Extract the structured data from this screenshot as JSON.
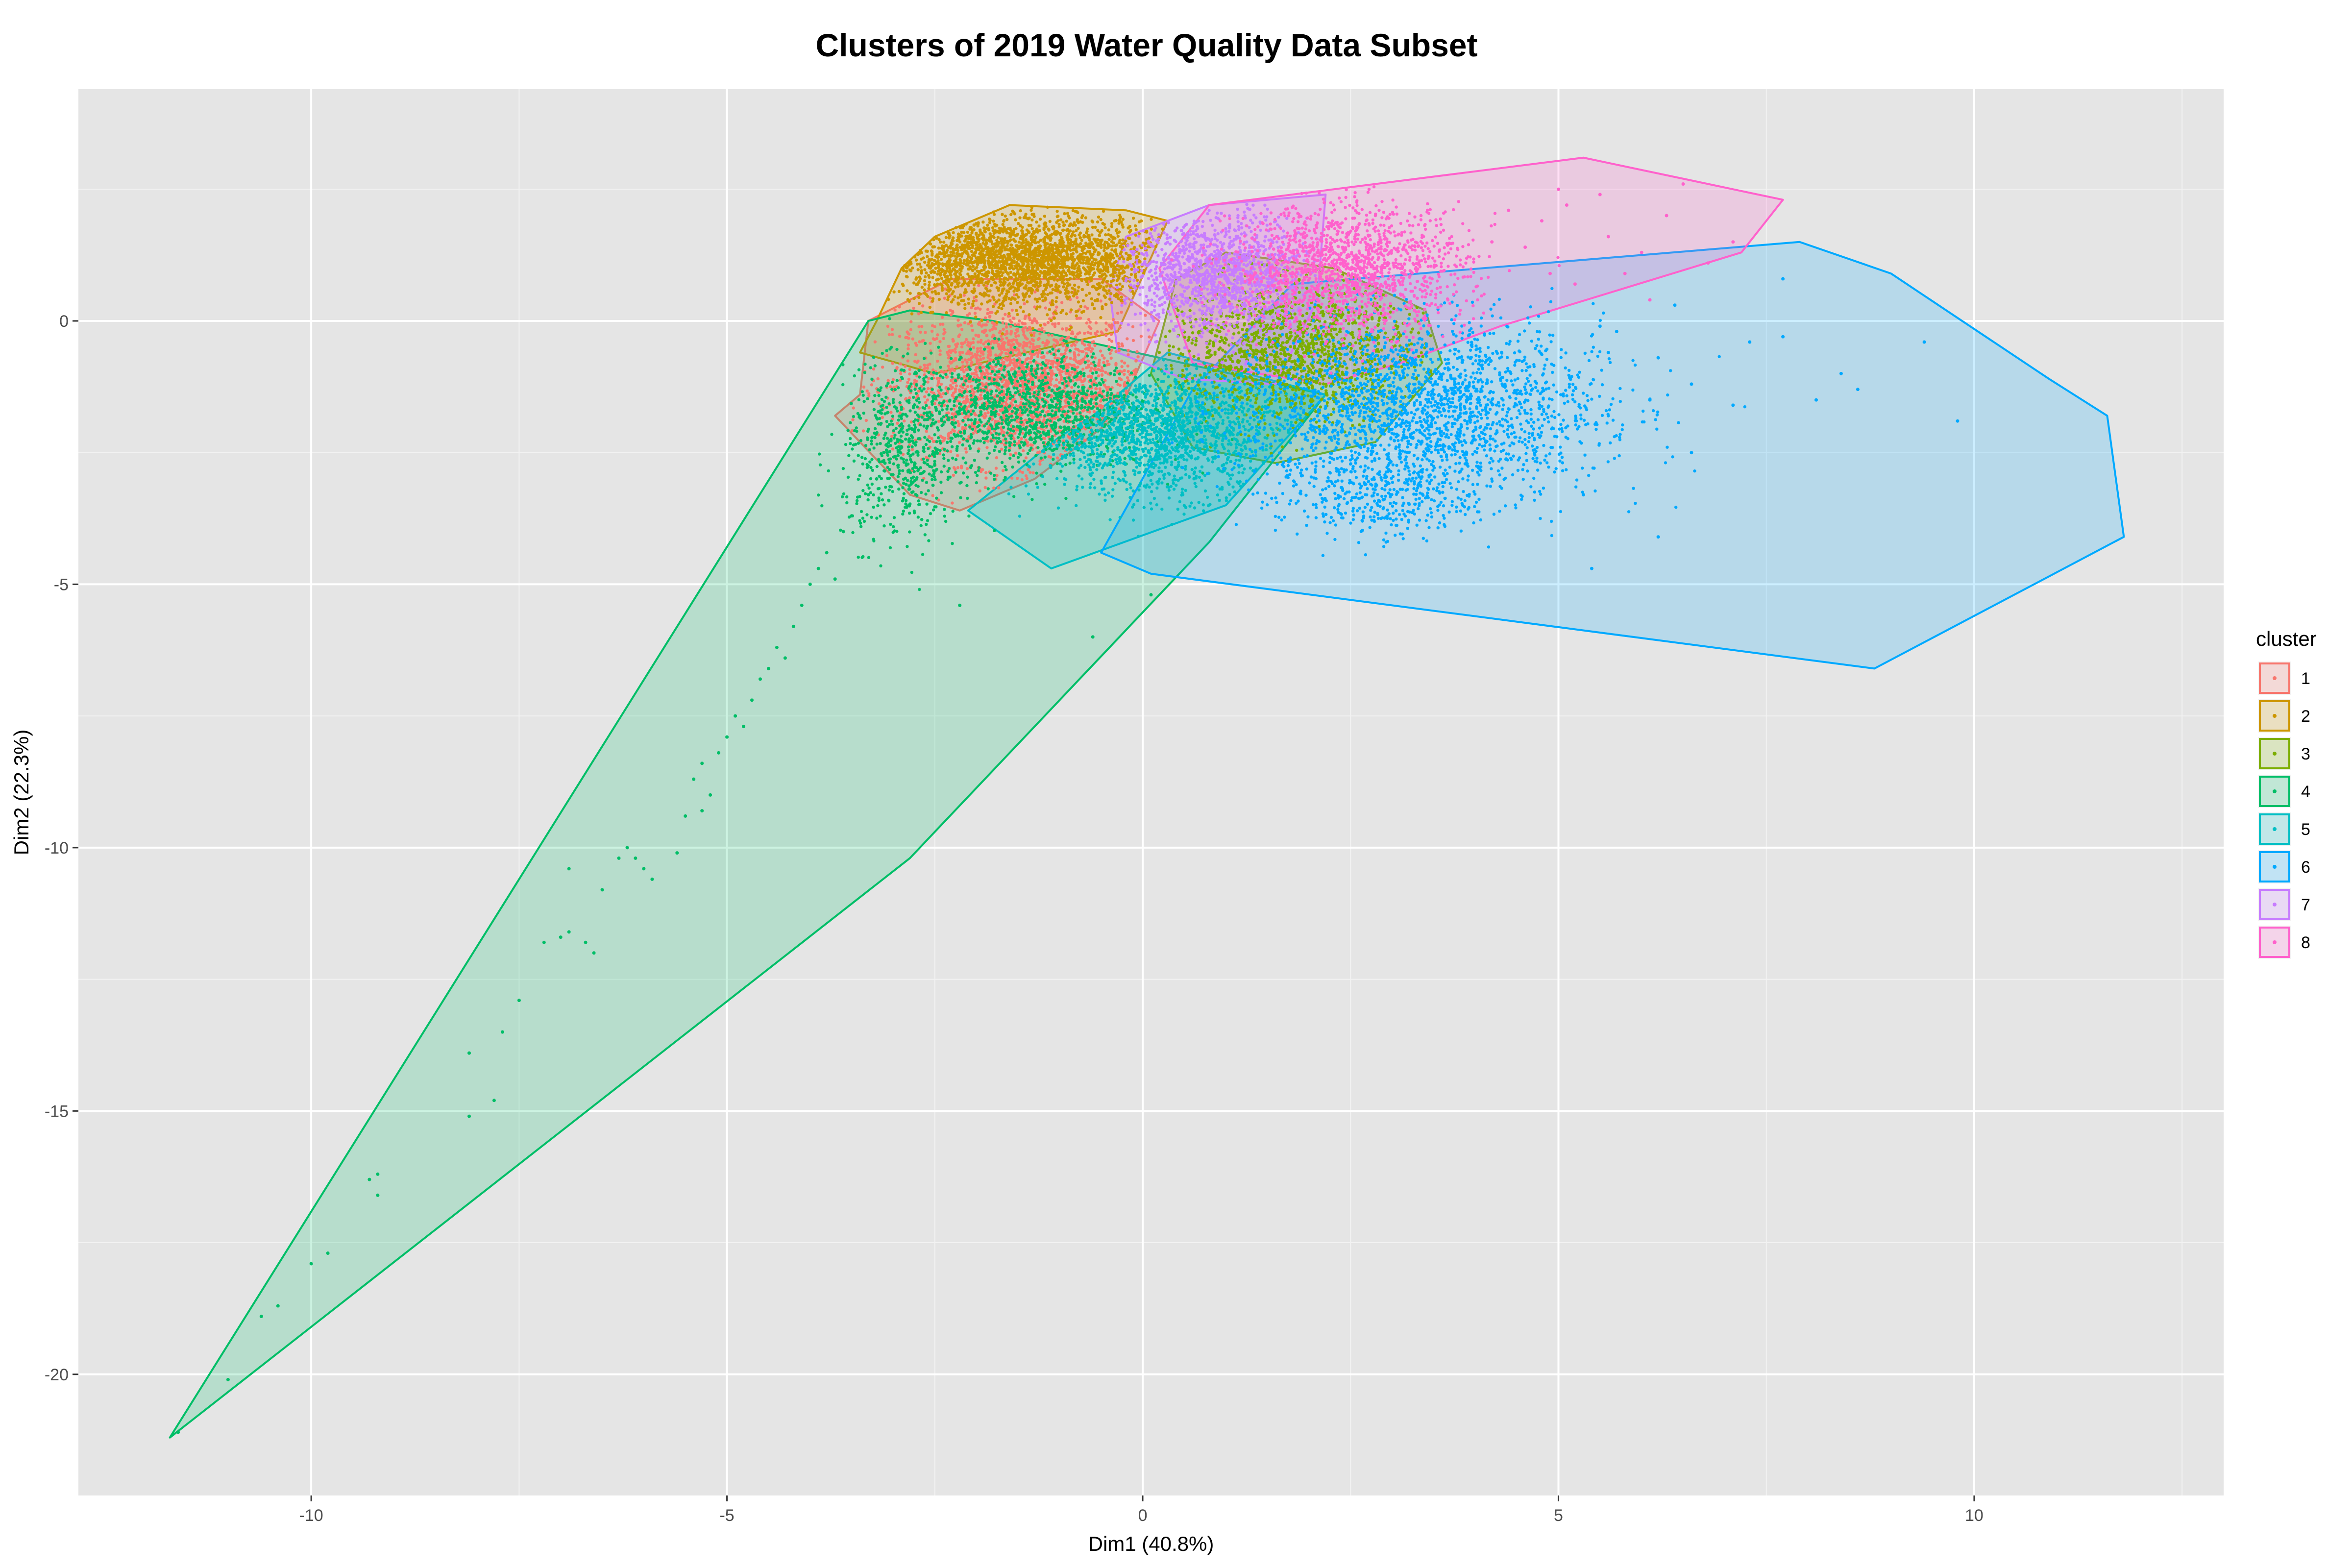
{
  "chart_data": {
    "type": "scatter",
    "title": "Clusters of 2019 Water Quality Data Subset",
    "xlabel": "Dim1 (40.8%)",
    "ylabel": "Dim2 (22.3%)",
    "xlim": [
      -12.8,
      13.0
    ],
    "ylim": [
      -22.3,
      4.4
    ],
    "x_ticks": [
      -10,
      -5,
      0,
      5,
      10
    ],
    "y_ticks": [
      0,
      -5,
      -10,
      -15,
      -20
    ],
    "x_tick_labels": [
      "-10",
      "-5",
      "0",
      "5",
      "10"
    ],
    "y_tick_labels": [
      "0",
      "-5",
      "-10",
      "-15",
      "-20"
    ],
    "grid": true,
    "background": "#e5e5e5",
    "legend": {
      "title": "cluster",
      "position": "right"
    },
    "series": [
      {
        "name": "1",
        "color": "#F8766D",
        "hull": [
          [
            -3.3,
            0
          ],
          [
            -2.3,
            0.8
          ],
          [
            -0.5,
            0.8
          ],
          [
            0.2,
            0
          ],
          [
            -0.3,
            -1.8
          ],
          [
            -1.3,
            -3.0
          ],
          [
            -2.2,
            -3.6
          ],
          [
            -2.8,
            -3.3
          ],
          [
            -3.7,
            -1.8
          ],
          [
            -3.4,
            -1.4
          ]
        ],
        "blobs": [
          {
            "cx": -1.5,
            "cy": -1.2,
            "sx": 0.75,
            "sy": 0.75,
            "n": 2200
          }
        ],
        "points": []
      },
      {
        "name": "2",
        "color": "#CD9600",
        "hull": [
          [
            -3.2,
            0
          ],
          [
            -2.9,
            1.0
          ],
          [
            -2.5,
            1.6
          ],
          [
            -1.6,
            2.2
          ],
          [
            -0.2,
            2.1
          ],
          [
            0.3,
            1.9
          ],
          [
            -0.3,
            -0.2
          ],
          [
            -2.5,
            -1.0
          ],
          [
            -3.4,
            -0.6
          ]
        ],
        "blobs": [
          {
            "cx": -1.4,
            "cy": 1.15,
            "sx": 0.85,
            "sy": 0.42,
            "n": 2400
          }
        ],
        "points": []
      },
      {
        "name": "3",
        "color": "#7CAE00",
        "hull": [
          [
            0.1,
            -1.0
          ],
          [
            0.4,
            0.8
          ],
          [
            1.0,
            1.3
          ],
          [
            2.3,
            1.0
          ],
          [
            3.4,
            0.2
          ],
          [
            3.6,
            -0.8
          ],
          [
            2.8,
            -2.3
          ],
          [
            1.6,
            -2.7
          ],
          [
            0.6,
            -2.4
          ]
        ],
        "blobs": [
          {
            "cx": 1.8,
            "cy": -0.6,
            "sx": 0.75,
            "sy": 0.65,
            "n": 1500
          }
        ],
        "points": []
      },
      {
        "name": "4",
        "color": "#00BE67",
        "hull": [
          [
            -11.7,
            -21.2
          ],
          [
            -3.3,
            0
          ],
          [
            -2.8,
            0.2
          ],
          [
            -1.8,
            0.0
          ],
          [
            2.2,
            -1.4
          ],
          [
            0.8,
            -4.2
          ],
          [
            -2.8,
            -10.2
          ]
        ],
        "blobs": [
          {
            "cx": -1.4,
            "cy": -1.7,
            "sx": 0.75,
            "sy": 0.55,
            "n": 1200
          },
          {
            "cx": -2.9,
            "cy": -2.6,
            "sx": 0.35,
            "sy": 0.8,
            "n": 500
          }
        ],
        "points": [
          [
            -11.6,
            -21.1
          ],
          [
            -11.0,
            -20.1
          ],
          [
            -10.6,
            -18.9
          ],
          [
            -10.4,
            -18.7
          ],
          [
            -10.0,
            -17.9
          ],
          [
            -9.8,
            -17.7
          ],
          [
            -9.3,
            -16.3
          ],
          [
            -9.2,
            -16.6
          ],
          [
            -9.2,
            -16.2
          ],
          [
            -8.1,
            -15.1
          ],
          [
            -8.1,
            -13.9
          ],
          [
            -7.8,
            -14.8
          ],
          [
            -7.7,
            -13.5
          ],
          [
            -7.5,
            -12.9
          ],
          [
            -7.2,
            -11.8
          ],
          [
            -7.0,
            -11.7
          ],
          [
            -6.9,
            -11.6
          ],
          [
            -6.9,
            -10.4
          ],
          [
            -6.7,
            -11.8
          ],
          [
            -6.6,
            -12.0
          ],
          [
            -6.5,
            -10.8
          ],
          [
            -6.3,
            -10.2
          ],
          [
            -6.2,
            -10.0
          ],
          [
            -6.0,
            -10.4
          ],
          [
            -5.9,
            -10.6
          ],
          [
            -5.6,
            -10.1
          ],
          [
            -5.5,
            -9.4
          ],
          [
            -5.4,
            -8.7
          ],
          [
            -5.3,
            -8.4
          ],
          [
            -5.2,
            -9.0
          ],
          [
            -5.1,
            -8.2
          ],
          [
            -5.0,
            -7.9
          ],
          [
            -4.8,
            -7.7
          ],
          [
            -4.7,
            -7.2
          ],
          [
            -4.6,
            -6.8
          ],
          [
            -4.5,
            -6.6
          ],
          [
            -4.4,
            -6.2
          ],
          [
            -4.2,
            -5.8
          ],
          [
            -4.1,
            -5.4
          ],
          [
            -4.0,
            -5.0
          ],
          [
            -3.9,
            -4.7
          ],
          [
            -3.8,
            -4.4
          ],
          [
            -3.6,
            -4.0
          ],
          [
            -3.5,
            -3.7
          ],
          [
            -3.3,
            -3.3
          ],
          [
            -3.2,
            -3.0
          ],
          [
            -3.7,
            -4.9
          ],
          [
            -4.3,
            -6.4
          ],
          [
            -4.9,
            -7.5
          ],
          [
            -5.3,
            -9.3
          ],
          [
            -6.1,
            -10.2
          ],
          [
            -3.1,
            -2.7
          ],
          [
            -2.9,
            -2.4
          ],
          [
            -0.6,
            -6.0
          ],
          [
            -2.2,
            -5.4
          ],
          [
            0.1,
            -5.2
          ]
        ]
      },
      {
        "name": "5",
        "color": "#00BFC4",
        "hull": [
          [
            -2.1,
            -3.6
          ],
          [
            -1.1,
            -4.7
          ],
          [
            1.0,
            -3.5
          ],
          [
            2.2,
            -1.4
          ],
          [
            0.3,
            -0.6
          ],
          [
            -0.6,
            -1.8
          ],
          [
            -1.0,
            -2.2
          ]
        ],
        "blobs": [
          {
            "cx": 0.2,
            "cy": -2.1,
            "sx": 0.75,
            "sy": 0.6,
            "n": 1500
          }
        ],
        "points": []
      },
      {
        "name": "6",
        "color": "#00A9FF",
        "hull": [
          [
            -0.5,
            -4.4
          ],
          [
            0.1,
            -4.8
          ],
          [
            8.8,
            -6.6
          ],
          [
            11.8,
            -4.1
          ],
          [
            11.6,
            -1.8
          ],
          [
            10.9,
            -1.1
          ],
          [
            9.0,
            0.9
          ],
          [
            7.9,
            1.5
          ],
          [
            1.8,
            0.7
          ],
          [
            0.6,
            -1.3
          ]
        ],
        "blobs": [
          {
            "cx": 3.3,
            "cy": -1.7,
            "sx": 1.1,
            "sy": 0.85,
            "n": 2300
          },
          {
            "cx": 2.8,
            "cy": -3.4,
            "sx": 0.6,
            "sy": 0.35,
            "n": 300
          }
        ],
        "points": [
          [
            5.6,
            -0.6
          ],
          [
            5.7,
            -0.2
          ],
          [
            6.2,
            -0.7
          ],
          [
            6.6,
            -1.2
          ],
          [
            6.1,
            -1.5
          ],
          [
            6.6,
            -2.5
          ],
          [
            6.2,
            -4.1
          ],
          [
            5.4,
            -4.7
          ],
          [
            7.1,
            -1.6
          ],
          [
            7.3,
            -0.4
          ],
          [
            7.7,
            -0.3
          ],
          [
            8.1,
            -1.5
          ],
          [
            8.4,
            -1.0
          ],
          [
            8.6,
            -1.3
          ],
          [
            9.4,
            -0.4
          ],
          [
            9.8,
            -1.9
          ],
          [
            7.7,
            0.8
          ],
          [
            6.4,
            0.3
          ],
          [
            5.5,
            -0.1
          ],
          [
            5.3,
            -3.3
          ]
        ]
      },
      {
        "name": "7",
        "color": "#C77CFF",
        "hull": [
          [
            -0.2,
            1.6
          ],
          [
            0.8,
            2.2
          ],
          [
            2.2,
            2.4
          ],
          [
            2.1,
            0.4
          ],
          [
            1.6,
            -1.2
          ],
          [
            0.5,
            -1.1
          ],
          [
            -0.3,
            -0.6
          ],
          [
            -0.4,
            0.6
          ]
        ],
        "blobs": [
          {
            "cx": 0.9,
            "cy": 0.9,
            "sx": 0.55,
            "sy": 0.55,
            "n": 1300
          }
        ],
        "points": []
      },
      {
        "name": "8",
        "color": "#FF61CC",
        "hull": [
          [
            0.8,
            2.2
          ],
          [
            5.3,
            3.1
          ],
          [
            7.7,
            2.3
          ],
          [
            7.2,
            1.3
          ],
          [
            4.3,
            -0.1
          ],
          [
            3.1,
            -0.8
          ],
          [
            2.2,
            -1.2
          ],
          [
            0.6,
            -0.8
          ],
          [
            0.2,
            1.0
          ]
        ],
        "blobs": [
          {
            "cx": 2.5,
            "cy": 1.0,
            "sx": 0.7,
            "sy": 0.6,
            "n": 1500
          }
        ],
        "points": [
          [
            4.6,
            1.4
          ],
          [
            4.8,
            1.9
          ],
          [
            5.1,
            2.2
          ],
          [
            5.6,
            1.6
          ],
          [
            6.0,
            1.3
          ],
          [
            6.3,
            2.0
          ],
          [
            6.5,
            2.6
          ],
          [
            6.8,
            1.1
          ],
          [
            7.1,
            1.5
          ],
          [
            5.2,
            0.7
          ],
          [
            4.9,
            0.9
          ],
          [
            5.8,
            0.9
          ],
          [
            6.1,
            0.4
          ],
          [
            5.5,
            2.4
          ],
          [
            5.0,
            2.5
          ],
          [
            4.2,
            1.5
          ],
          [
            4.4,
            2.1
          ]
        ]
      }
    ]
  }
}
